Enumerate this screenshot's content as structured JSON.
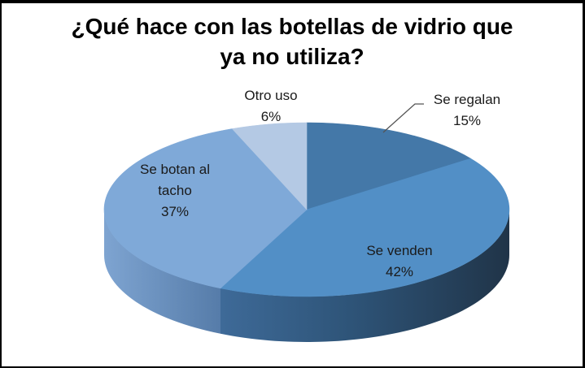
{
  "page": {
    "background_color": "#ffffff",
    "frame_border_color": "#000000"
  },
  "chart_data": {
    "type": "pie",
    "effect": "3d",
    "title": "¿Qué hace con las botellas de vidrio que ya no utiliza?",
    "legend": "none",
    "data_labels": "category name + percentage",
    "start_angle_deg": 0,
    "direction": "clockwise",
    "slices": [
      {
        "label": "Se regalan",
        "value": 15,
        "value_label": "15%",
        "color": "#4478A8",
        "label_placement": "outside-callout"
      },
      {
        "label": "Se venden",
        "value": 42,
        "value_label": "42%",
        "color": "#528FC6",
        "side_from": "#3E6A98",
        "side_mid": "#2E5478",
        "side_to": "#203448",
        "label_placement": "inside"
      },
      {
        "label": "Se botan al tacho",
        "value": 37,
        "value_label": "37%",
        "color": "#7FA9D8",
        "side_from": "#7EA4D1",
        "side_to": "#567CA9",
        "label_placement": "inside"
      },
      {
        "label": "Otro uso",
        "value": 6,
        "value_label": "6%",
        "color": "#B4C9E4",
        "label_placement": "outside"
      }
    ],
    "callout_line_color": "#555555"
  }
}
